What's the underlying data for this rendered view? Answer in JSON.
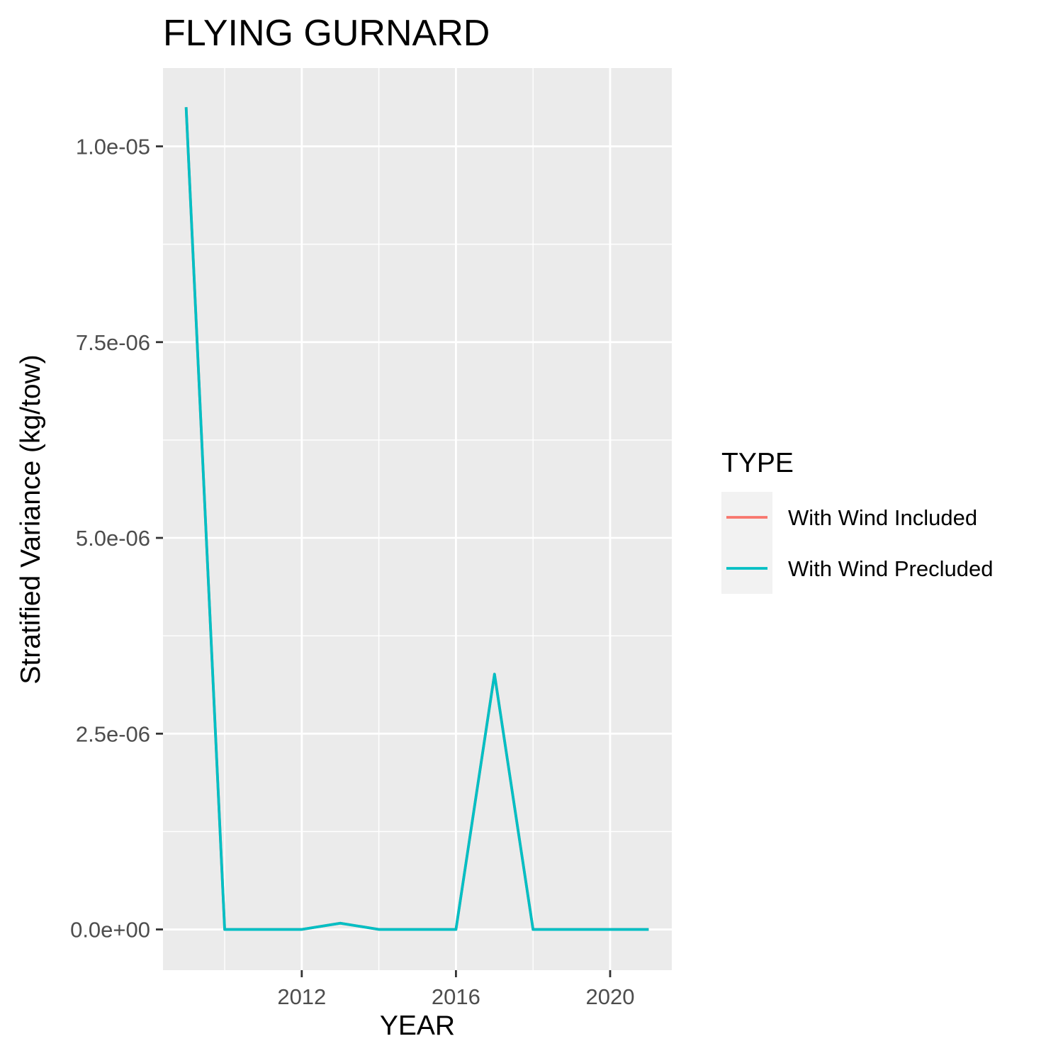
{
  "chart_data": {
    "type": "line",
    "title": "FLYING GURNARD",
    "xlabel": "YEAR",
    "ylabel": "Stratified Variance (kg/tow)",
    "xlim": [
      2008.4,
      2021.6
    ],
    "ylim": [
      -5.2e-07,
      1.1e-05
    ],
    "x_ticks": [
      2012,
      2016,
      2020
    ],
    "x_tick_labels": [
      "2012",
      "2016",
      "2020"
    ],
    "x_minor_ticks": [
      2010,
      2014,
      2018
    ],
    "y_ticks": [
      0,
      2.5e-06,
      5e-06,
      7.5e-06,
      1e-05
    ],
    "y_tick_labels": [
      "0.0e+00",
      "2.5e-06",
      "5.0e-06",
      "7.5e-06",
      "1.0e-05"
    ],
    "y_minor_ticks": [
      1.25e-06,
      3.75e-06,
      6.25e-06,
      8.75e-06
    ],
    "grid": true,
    "legend": {
      "title": "TYPE",
      "position": "right"
    },
    "x": [
      2009,
      2010,
      2011,
      2012,
      2013,
      2014,
      2015,
      2016,
      2017,
      2018,
      2019,
      2020,
      2021
    ],
    "series": [
      {
        "name": "With Wind Included",
        "color": "#F8766D",
        "values": [
          1.05e-05,
          0,
          0,
          0,
          8e-08,
          0,
          0,
          0,
          3.26e-06,
          0,
          0,
          0,
          0
        ]
      },
      {
        "name": "With Wind Precluded",
        "color": "#00BFC4",
        "values": [
          1.05e-05,
          0,
          0,
          0,
          8e-08,
          0,
          0,
          0,
          3.26e-06,
          0,
          0,
          0,
          0
        ]
      }
    ]
  }
}
